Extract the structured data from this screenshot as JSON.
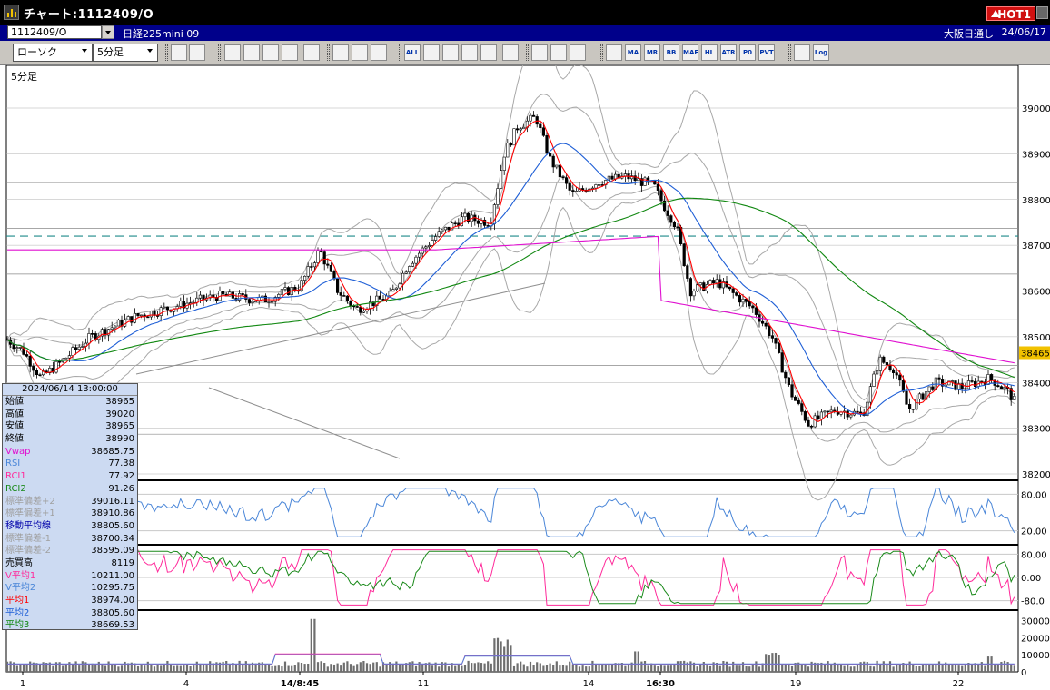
{
  "window": {
    "title": "チャート:1112409/O",
    "hot_label": "HOT1"
  },
  "infobar": {
    "code": "1112409/O",
    "instrument": "日経225mini 09",
    "session": "大阪日通し",
    "date": "24/06/17"
  },
  "toolbar": {
    "chart_type": "ローソク",
    "interval": "5分足",
    "buttons": [
      {
        "name": "zoom-icon",
        "label": ""
      },
      {
        "name": "split-icon",
        "label": ""
      },
      {
        "name": "candle-icon",
        "label": ""
      },
      {
        "name": "search-icon",
        "label": ""
      },
      {
        "name": "bar-chart-icon",
        "label": ""
      },
      {
        "name": "line-chart-icon",
        "label": ""
      },
      {
        "name": "trend-icon",
        "label": ""
      },
      {
        "name": "marker-icon",
        "label": ""
      },
      {
        "name": "window-a-icon",
        "label": ""
      },
      {
        "name": "window-b-icon",
        "label": ""
      },
      {
        "name": "all-icon",
        "label": "ALL"
      },
      {
        "name": "pen-icon",
        "label": ""
      },
      {
        "name": "draw-line-icon",
        "label": ""
      },
      {
        "name": "cursor-icon",
        "label": ""
      },
      {
        "name": "arrow-icon",
        "label": ""
      },
      {
        "name": "note-icon",
        "label": ""
      },
      {
        "name": "trash-icon",
        "label": ""
      },
      {
        "name": "grid-icon",
        "label": ""
      },
      {
        "name": "settings-icon",
        "label": ""
      },
      {
        "name": "color-icon",
        "label": ""
      },
      {
        "name": "ma-icon",
        "label": "MA"
      },
      {
        "name": "mr-icon",
        "label": "MR"
      },
      {
        "name": "bb-icon",
        "label": "BB"
      },
      {
        "name": "mae-icon",
        "label": "MAE"
      },
      {
        "name": "hl-icon",
        "label": "HL"
      },
      {
        "name": "atr-icon",
        "label": "ATR"
      },
      {
        "name": "pivot-alt-icon",
        "label": "P0"
      },
      {
        "name": "pvt-icon",
        "label": "PVT"
      },
      {
        "name": "box-icon",
        "label": ""
      },
      {
        "name": "log-icon",
        "label": "Log"
      },
      {
        "name": "export-icon",
        "label": ""
      }
    ]
  },
  "chart": {
    "interval_label": "5分足",
    "current_price": "38465",
    "price_ticks": [
      "39000",
      "38900",
      "38800",
      "38700",
      "38600",
      "38500",
      "38400",
      "38300",
      "38200"
    ],
    "rsi_ticks": [
      "80.00",
      "20.00"
    ],
    "rci_ticks": [
      "80.00",
      "0.00",
      "-80.0"
    ],
    "volume_ticks": [
      "30000",
      "20000",
      "10000",
      "0"
    ],
    "x_labels": [
      "1",
      "4",
      "14/8:45",
      "11",
      "14",
      "16:30",
      "19",
      "22"
    ],
    "colors": {
      "candle": "#000000",
      "ma1": "#ff0000",
      "ma2": "#1f5fd6",
      "ma3": "#118811",
      "vwap": "#e010d0",
      "bands": "#a8a8a8",
      "rsi": "#4a86d8",
      "rci1": "#ff2a9a",
      "rci2": "#1a8a1a"
    }
  },
  "datapanel": {
    "timestamp": "2024/06/14 13:00:00",
    "rows": [
      {
        "label": "始値",
        "value": "38965",
        "color": "#000000"
      },
      {
        "label": "高値",
        "value": "39020",
        "color": "#000000"
      },
      {
        "label": "安値",
        "value": "38965",
        "color": "#000000"
      },
      {
        "label": "終値",
        "value": "38990",
        "color": "#000000"
      },
      {
        "label": "Vwap",
        "value": "38685.75",
        "color": "#e010d0"
      },
      {
        "label": "RSI",
        "value": "77.38",
        "color": "#4a86d8"
      },
      {
        "label": "RCI1",
        "value": "77.92",
        "color": "#ff2a9a"
      },
      {
        "label": "RCI2",
        "value": "91.26",
        "color": "#1a8a1a"
      },
      {
        "label": "標準偏差+2",
        "value": "39016.11",
        "color": "#a0a0a0"
      },
      {
        "label": "標準偏差+1",
        "value": "38910.86",
        "color": "#a0a0a0"
      },
      {
        "label": "移動平均線",
        "value": "38805.60",
        "color": "#0000aa"
      },
      {
        "label": "標準偏差-1",
        "value": "38700.34",
        "color": "#a0a0a0"
      },
      {
        "label": "標準偏差-2",
        "value": "38595.09",
        "color": "#a0a0a0"
      },
      {
        "label": "売買高",
        "value": "8119",
        "color": "#000000"
      },
      {
        "label": "V平均1",
        "value": "10211.00",
        "color": "#ff2a9a"
      },
      {
        "label": "V平均2",
        "value": "10295.75",
        "color": "#4a86d8"
      },
      {
        "label": "平均1",
        "value": "38974.00",
        "color": "#ff0000"
      },
      {
        "label": "平均2",
        "value": "38805.60",
        "color": "#1f5fd6"
      },
      {
        "label": "平均3",
        "value": "38669.53",
        "color": "#118811"
      }
    ]
  }
}
